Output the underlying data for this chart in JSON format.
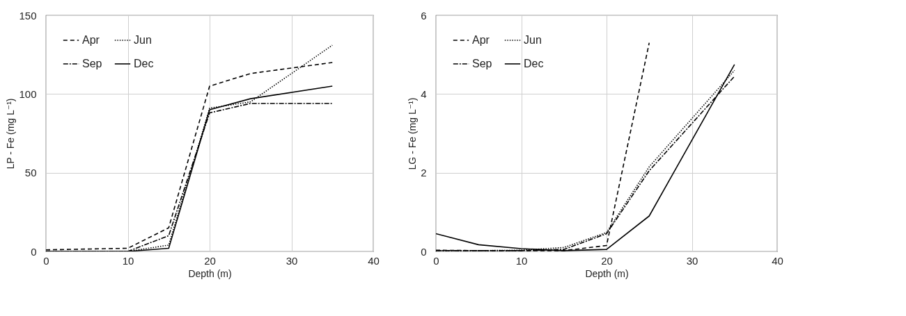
{
  "chart_data": [
    {
      "type": "line",
      "xlabel": "Depth (m)",
      "ylabel": "LP - Fe (mg L⁻¹)",
      "xlim": [
        0,
        40
      ],
      "xticks": [
        0,
        10,
        20,
        30,
        40
      ],
      "ylim": [
        0,
        150
      ],
      "yticks": [
        0,
        50,
        100,
        150
      ],
      "grid": true,
      "legend": "top left",
      "series": [
        {
          "name": "Apr",
          "color": "#000000",
          "line_style": "dashed",
          "x": [
            0,
            10,
            15,
            20,
            25,
            35
          ],
          "values": [
            1,
            2,
            15,
            105,
            113,
            120
          ]
        },
        {
          "name": "Jun",
          "color": "#000000",
          "line_style": "dotted",
          "x": [
            0,
            10,
            15,
            20,
            25,
            35
          ],
          "values": [
            0,
            0,
            4,
            91,
            95,
            131
          ]
        },
        {
          "name": "Sep",
          "color": "#000000",
          "line_style": "dashdot",
          "x": [
            0,
            10,
            15,
            20,
            25,
            35
          ],
          "values": [
            0,
            0,
            10,
            88,
            94,
            94
          ]
        },
        {
          "name": "Dec",
          "color": "#000000",
          "line_style": "solid",
          "x": [
            0,
            10,
            15,
            20,
            25,
            35
          ],
          "values": [
            0,
            0,
            2,
            90,
            97,
            105
          ]
        }
      ]
    },
    {
      "type": "line",
      "xlabel": "Depth (m)",
      "ylabel": "LG - Fe (mg L⁻¹)",
      "xlim": [
        0,
        40
      ],
      "xticks": [
        0,
        10,
        20,
        30,
        40
      ],
      "ylim": [
        0,
        6
      ],
      "yticks": [
        0,
        2,
        4,
        6
      ],
      "grid": true,
      "legend": "top left",
      "series": [
        {
          "name": "Apr",
          "color": "#000000",
          "line_style": "dashed",
          "x": [
            0,
            5,
            10,
            15,
            20,
            25
          ],
          "values": [
            0.03,
            0.02,
            0.02,
            0.02,
            0.15,
            5.3
          ]
        },
        {
          "name": "Jun",
          "color": "#000000",
          "line_style": "dotted",
          "x": [
            0,
            5,
            10,
            15,
            20,
            25,
            35
          ],
          "values": [
            0.02,
            0.02,
            0.03,
            0.1,
            0.48,
            2.15,
            4.6
          ]
        },
        {
          "name": "Sep",
          "color": "#000000",
          "line_style": "dashdot",
          "x": [
            0,
            5,
            10,
            15,
            20,
            25,
            35
          ],
          "values": [
            0.02,
            0.02,
            0.02,
            0.05,
            0.45,
            2.05,
            4.45
          ]
        },
        {
          "name": "Dec",
          "color": "#000000",
          "line_style": "solid",
          "x": [
            0,
            5,
            10,
            15,
            20,
            25,
            35
          ],
          "values": [
            0.45,
            0.17,
            0.07,
            0.02,
            0.05,
            0.9,
            4.75
          ]
        }
      ]
    }
  ]
}
